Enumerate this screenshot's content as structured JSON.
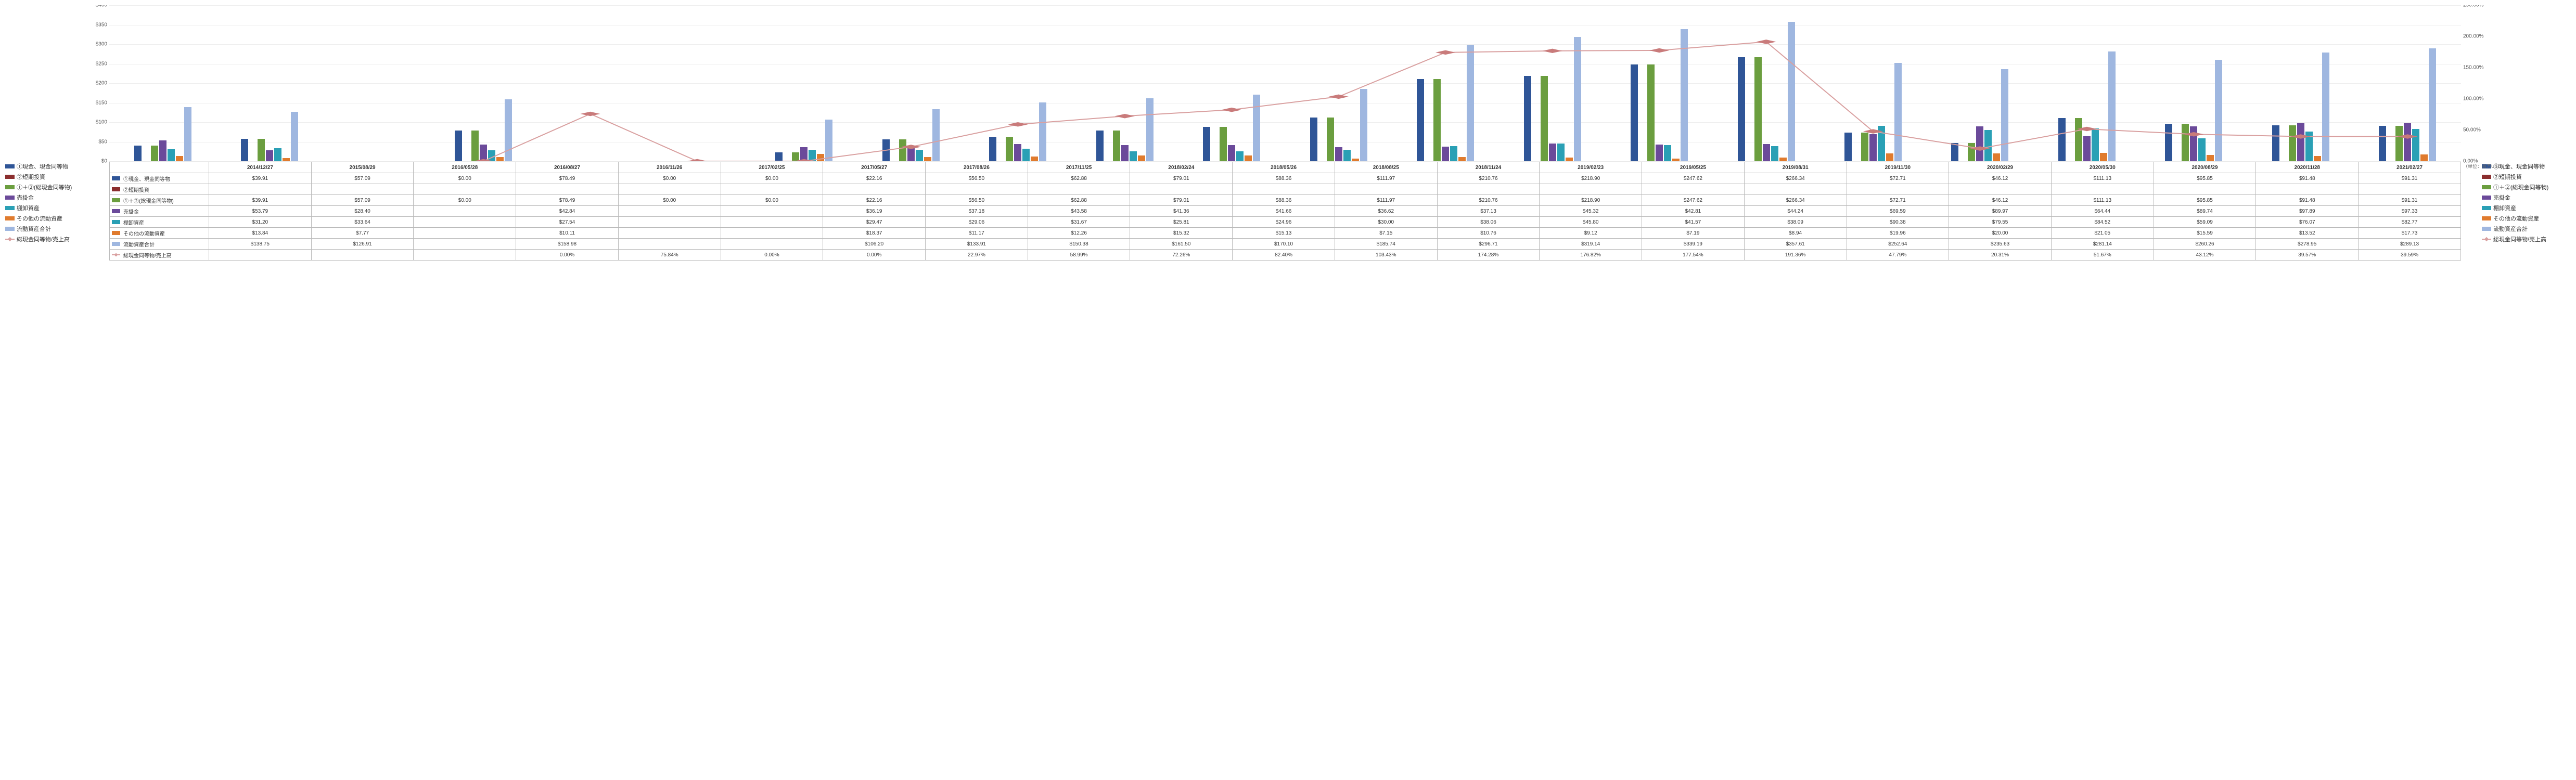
{
  "unit_label": "（単位：百万USD）",
  "y_left": {
    "max": 400,
    "step": 50,
    "prefix": "$"
  },
  "y_right": {
    "max": 250,
    "step": 50,
    "suffix": "%"
  },
  "line_color": "#d9a0a0",
  "marker_color": "#c97b7b",
  "periods": [
    "2014/12/27",
    "2015/08/29",
    "2016/05/28",
    "2016/08/27",
    "2016/11/26",
    "2017/02/25",
    "2017/05/27",
    "2017/08/26",
    "2017/11/25",
    "2018/02/24",
    "2018/05/26",
    "2018/08/25",
    "2018/11/24",
    "2019/02/23",
    "2019/05/25",
    "2019/08/31",
    "2019/11/30",
    "2020/02/29",
    "2020/05/30",
    "2020/08/29",
    "2020/11/28",
    "2021/02/27"
  ],
  "series": [
    {
      "key": "s1",
      "label": "①現金、現金同等物",
      "color": "#2f5597",
      "type": "bar"
    },
    {
      "key": "s2",
      "label": "②短期投資",
      "color": "#8b2e2e",
      "type": "bar"
    },
    {
      "key": "s3",
      "label": "①＋②(総現金同等物)",
      "color": "#6b9e3f",
      "type": "bar"
    },
    {
      "key": "s4",
      "label": "売掛金",
      "color": "#6b4a9a",
      "type": "bar"
    },
    {
      "key": "s5",
      "label": "棚卸資産",
      "color": "#2aa0b5",
      "type": "bar"
    },
    {
      "key": "s6",
      "label": "その他の流動資産",
      "color": "#e07b2e",
      "type": "bar"
    },
    {
      "key": "s7",
      "label": "流動資産合計",
      "color": "#9fb7e0",
      "type": "bar"
    },
    {
      "key": "s8",
      "label": "総現金同等物/売上高",
      "color": "#d9a0a0",
      "type": "line"
    }
  ],
  "rows": {
    "s1": {
      "values": [
        39.91,
        57.09,
        0.0,
        78.49,
        0.0,
        0.0,
        22.16,
        56.5,
        62.88,
        79.01,
        88.36,
        111.97,
        210.76,
        218.9,
        247.62,
        266.34,
        72.71,
        46.12,
        111.13,
        95.85,
        91.48,
        91.31
      ],
      "fmt": "money"
    },
    "s2": {
      "values": [
        null,
        null,
        null,
        null,
        null,
        null,
        null,
        null,
        null,
        null,
        null,
        null,
        null,
        null,
        null,
        null,
        null,
        null,
        null,
        null,
        null,
        null
      ],
      "fmt": "money"
    },
    "s3": {
      "values": [
        39.91,
        57.09,
        0.0,
        78.49,
        0.0,
        0.0,
        22.16,
        56.5,
        62.88,
        79.01,
        88.36,
        111.97,
        210.76,
        218.9,
        247.62,
        266.34,
        72.71,
        46.12,
        111.13,
        95.85,
        91.48,
        91.31
      ],
      "fmt": "money"
    },
    "s4": {
      "values": [
        53.79,
        28.4,
        null,
        42.84,
        null,
        null,
        36.19,
        37.18,
        43.58,
        41.36,
        41.66,
        36.62,
        37.13,
        45.32,
        42.81,
        44.24,
        69.59,
        89.97,
        64.44,
        89.74,
        97.89,
        97.33
      ],
      "fmt": "money"
    },
    "s5": {
      "values": [
        31.2,
        33.64,
        null,
        27.54,
        null,
        null,
        29.47,
        29.06,
        31.67,
        25.81,
        24.96,
        30.0,
        38.06,
        45.8,
        41.57,
        38.09,
        90.38,
        79.55,
        84.52,
        59.09,
        76.07,
        82.77
      ],
      "fmt": "money"
    },
    "s6": {
      "values": [
        13.84,
        7.77,
        null,
        10.11,
        null,
        null,
        18.37,
        11.17,
        12.26,
        15.32,
        15.13,
        7.15,
        10.76,
        9.12,
        7.19,
        8.94,
        19.96,
        20.0,
        21.05,
        15.59,
        13.52,
        17.73
      ],
      "fmt": "money"
    },
    "s7": {
      "values": [
        138.75,
        126.91,
        null,
        158.98,
        null,
        null,
        106.2,
        133.91,
        150.38,
        161.5,
        170.1,
        185.74,
        296.71,
        319.14,
        339.19,
        357.61,
        252.64,
        235.63,
        281.14,
        260.26,
        278.95,
        289.13
      ],
      "fmt": "money"
    },
    "s8": {
      "values": [
        null,
        null,
        0.0,
        75.84,
        0.0,
        0.0,
        22.97,
        58.99,
        72.26,
        82.4,
        103.43,
        174.28,
        176.82,
        177.54,
        191.36,
        47.79,
        20.31,
        51.67,
        43.12,
        39.57,
        39.59,
        null
      ],
      "fmt": "pct",
      "offset": 1
    }
  }
}
